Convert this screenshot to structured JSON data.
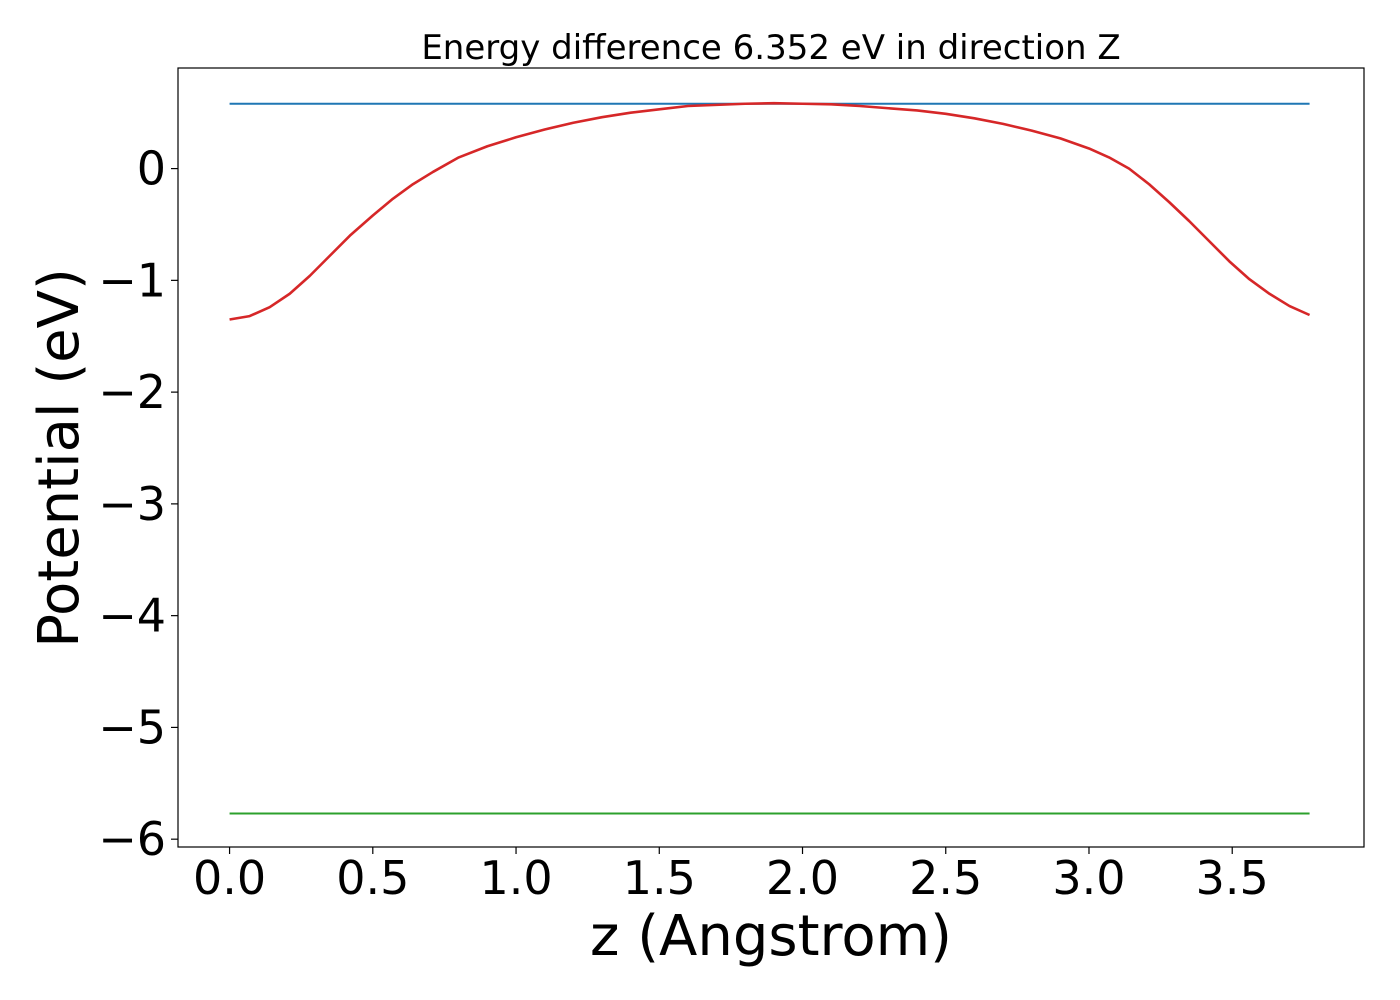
{
  "chart_data": {
    "type": "line",
    "title": "Energy difference 6.352 eV in direction Z",
    "xlabel": "z (Angstrom)",
    "ylabel": "Potential (eV)",
    "xlim": [
      -0.18,
      3.96
    ],
    "ylim": [
      -6.07,
      0.9
    ],
    "xticks": [
      0.0,
      0.5,
      1.0,
      1.5,
      2.0,
      2.5,
      3.0,
      3.5
    ],
    "xtick_labels": [
      "0.0",
      "0.5",
      "1.0",
      "1.5",
      "2.0",
      "2.5",
      "3.0",
      "3.5"
    ],
    "yticks": [
      0,
      -1,
      -2,
      -3,
      -4,
      -5,
      -6
    ],
    "ytick_labels": [
      "0",
      "−1",
      "−2",
      "−3",
      "−4",
      "−5",
      "−6"
    ],
    "grid": false,
    "series": [
      {
        "color": "#1f77b4",
        "x": [
          0.0,
          3.77
        ],
        "y": [
          0.58,
          0.58
        ]
      },
      {
        "color": "#d62728",
        "x": [
          0.0,
          0.07,
          0.14,
          0.21,
          0.28,
          0.35,
          0.42,
          0.5,
          0.57,
          0.64,
          0.71,
          0.8,
          0.9,
          1.0,
          1.1,
          1.2,
          1.3,
          1.4,
          1.5,
          1.6,
          1.7,
          1.8,
          1.9,
          2.0,
          2.1,
          2.2,
          2.3,
          2.4,
          2.5,
          2.6,
          2.7,
          2.8,
          2.9,
          3.0,
          3.07,
          3.14,
          3.21,
          3.28,
          3.35,
          3.42,
          3.49,
          3.56,
          3.63,
          3.7,
          3.77
        ],
        "y": [
          -1.35,
          -1.32,
          -1.24,
          -1.12,
          -0.96,
          -0.78,
          -0.6,
          -0.42,
          -0.27,
          -0.14,
          -0.03,
          0.1,
          0.2,
          0.28,
          0.35,
          0.41,
          0.46,
          0.5,
          0.53,
          0.56,
          0.57,
          0.58,
          0.585,
          0.58,
          0.575,
          0.56,
          0.54,
          0.52,
          0.49,
          0.45,
          0.4,
          0.34,
          0.27,
          0.18,
          0.1,
          0.0,
          -0.14,
          -0.3,
          -0.47,
          -0.65,
          -0.83,
          -0.99,
          -1.12,
          -1.23,
          -1.31
        ]
      },
      {
        "color": "#2ca02c",
        "x": [
          0.0,
          3.77
        ],
        "y": [
          -5.77,
          -5.77
        ]
      }
    ]
  }
}
